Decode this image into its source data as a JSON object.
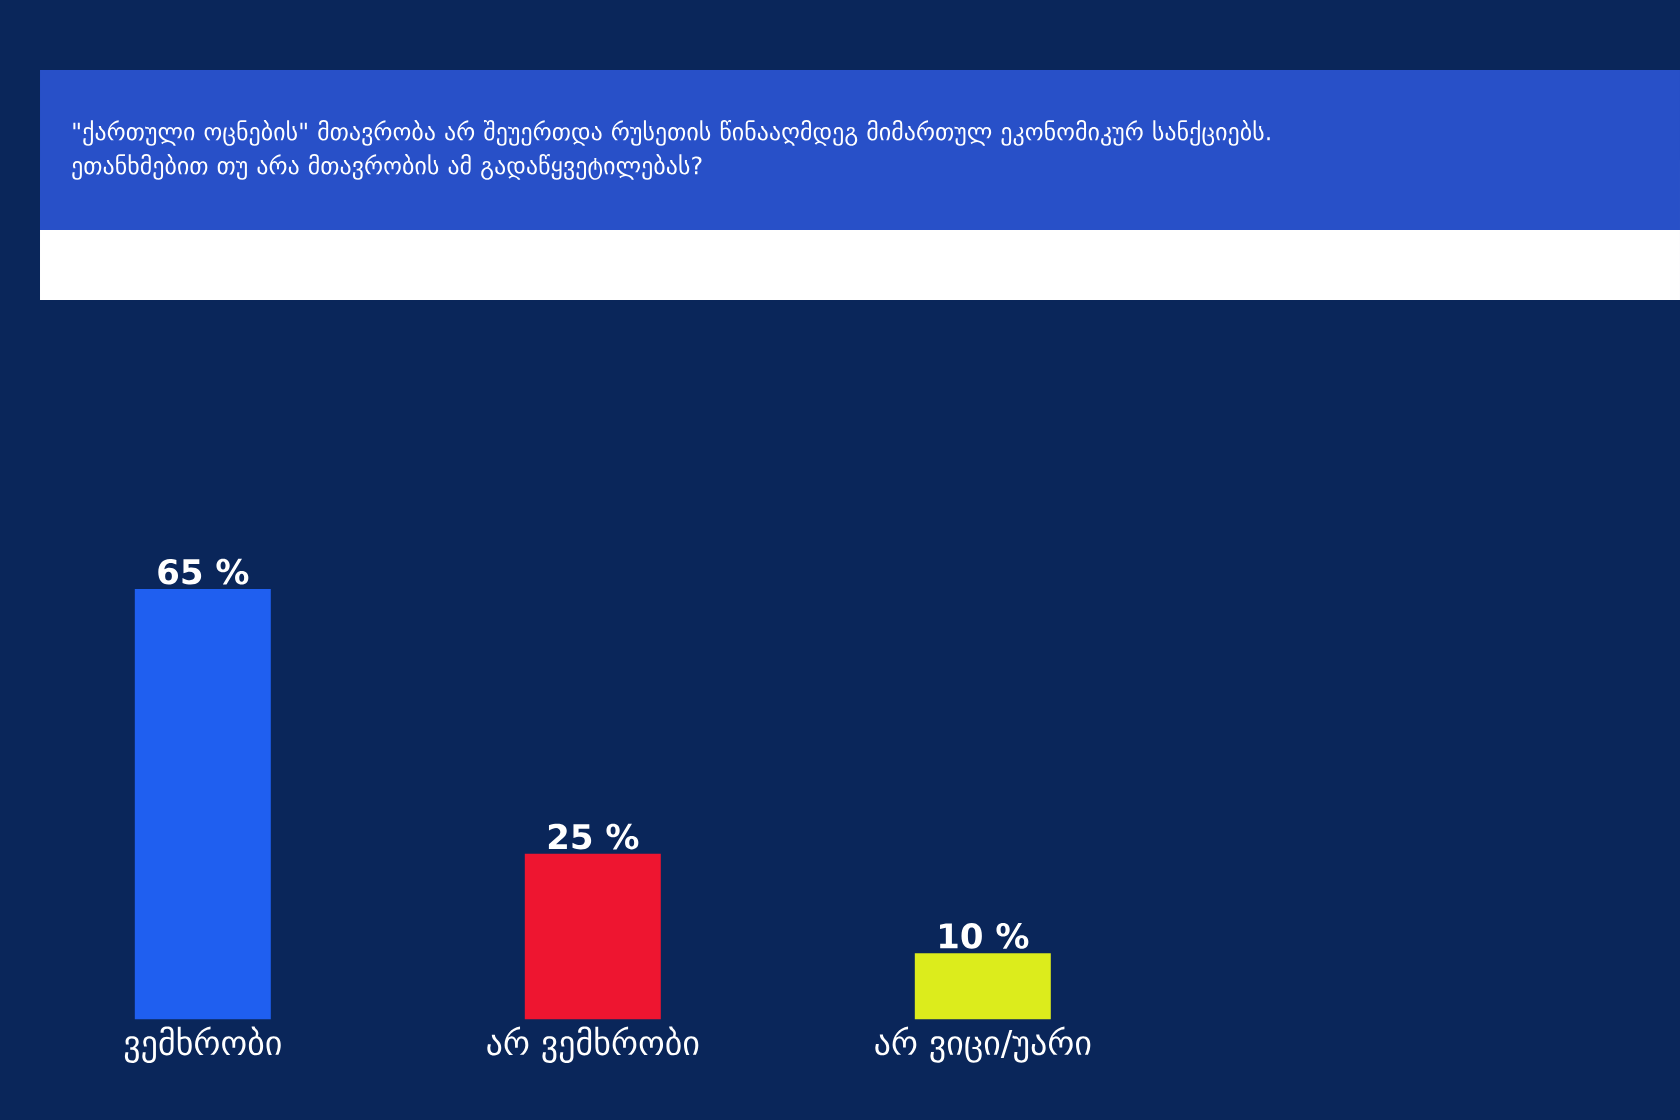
{
  "chart_data": {
    "type": "bar",
    "title": "\"ქართული ოცნების\" მთავრობა არ შეუერთდა რუსეთის წინააღმდეგ მიმართულ ეკონომიკურ სანქციებს. ეთანხმებით თუ არა მთავრობის ამ გადაწყვეტილებას?",
    "categories": [
      "ვემხრობი",
      "არ ვემხრობი",
      "არ ვიცი/უარი"
    ],
    "values": [
      65,
      25,
      10
    ],
    "colors": [
      "#1f5ff0",
      "#ee1530",
      "#dcec1c"
    ],
    "value_labels": [
      "65 %",
      "25 %",
      "10 %"
    ]
  }
}
